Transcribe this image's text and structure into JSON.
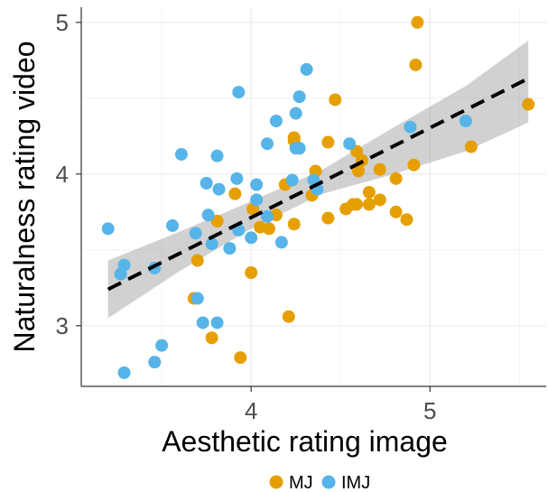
{
  "chart_data": {
    "type": "scatter",
    "xlabel": "Aesthetic rating image",
    "ylabel": "Naturalness rating video",
    "xlim": [
      3.05,
      5.65
    ],
    "ylim": [
      2.6,
      5.1
    ],
    "x_ticks": [
      4,
      5
    ],
    "y_ticks": [
      3,
      4,
      5
    ],
    "grid": true,
    "legend_position": "bottom",
    "series": [
      {
        "name": "MJ",
        "color": "#E69F00",
        "points": [
          [
            4.93,
            5.0
          ],
          [
            4.92,
            4.72
          ],
          [
            5.55,
            4.46
          ],
          [
            4.47,
            4.49
          ],
          [
            4.24,
            4.24
          ],
          [
            4.24,
            4.22
          ],
          [
            4.43,
            4.21
          ],
          [
            4.59,
            4.15
          ],
          [
            5.23,
            4.18
          ],
          [
            4.62,
            4.09
          ],
          [
            4.6,
            4.02
          ],
          [
            4.91,
            4.06
          ],
          [
            4.72,
            4.03
          ],
          [
            4.36,
            4.02
          ],
          [
            4.81,
            3.97
          ],
          [
            4.19,
            3.93
          ],
          [
            3.91,
            3.87
          ],
          [
            4.34,
            3.86
          ],
          [
            4.66,
            3.88
          ],
          [
            4.72,
            3.83
          ],
          [
            4.57,
            3.8
          ],
          [
            4.59,
            3.8
          ],
          [
            4.53,
            3.77
          ],
          [
            4.66,
            3.8
          ],
          [
            4.01,
            3.77
          ],
          [
            4.14,
            3.73
          ],
          [
            4.81,
            3.75
          ],
          [
            4.87,
            3.7
          ],
          [
            4.43,
            3.71
          ],
          [
            4.24,
            3.67
          ],
          [
            3.81,
            3.69
          ],
          [
            4.05,
            3.65
          ],
          [
            4.1,
            3.64
          ],
          [
            3.7,
            3.43
          ],
          [
            4.0,
            3.35
          ],
          [
            3.68,
            3.18
          ],
          [
            4.21,
            3.06
          ],
          [
            3.78,
            2.92
          ],
          [
            3.94,
            2.79
          ]
        ]
      },
      {
        "name": "IMJ",
        "color": "#56B4E9",
        "points": [
          [
            4.31,
            4.69
          ],
          [
            3.93,
            4.54
          ],
          [
            4.27,
            4.51
          ],
          [
            4.25,
            4.4
          ],
          [
            4.14,
            4.35
          ],
          [
            4.89,
            4.31
          ],
          [
            5.2,
            4.35
          ],
          [
            4.09,
            4.2
          ],
          [
            4.55,
            4.2
          ],
          [
            4.27,
            4.17
          ],
          [
            4.25,
            4.17
          ],
          [
            3.61,
            4.13
          ],
          [
            3.81,
            4.12
          ],
          [
            3.92,
            3.97
          ],
          [
            4.23,
            3.96
          ],
          [
            4.35,
            3.96
          ],
          [
            3.75,
            3.94
          ],
          [
            4.03,
            3.93
          ],
          [
            3.82,
            3.9
          ],
          [
            4.37,
            3.9
          ],
          [
            4.03,
            3.83
          ],
          [
            3.76,
            3.73
          ],
          [
            4.09,
            3.72
          ],
          [
            3.56,
            3.66
          ],
          [
            3.69,
            3.61
          ],
          [
            3.93,
            3.63
          ],
          [
            4.0,
            3.58
          ],
          [
            4.17,
            3.55
          ],
          [
            3.78,
            3.54
          ],
          [
            3.88,
            3.51
          ],
          [
            3.2,
            3.64
          ],
          [
            3.27,
            3.34
          ],
          [
            3.29,
            3.4
          ],
          [
            3.46,
            3.38
          ],
          [
            3.7,
            3.18
          ],
          [
            3.73,
            3.02
          ],
          [
            3.81,
            3.02
          ],
          [
            3.5,
            2.87
          ],
          [
            3.46,
            2.76
          ],
          [
            3.29,
            2.69
          ]
        ]
      }
    ],
    "fit_line": {
      "x": [
        3.2,
        5.55
      ],
      "y": [
        3.24,
        4.63
      ]
    },
    "confidence_band": {
      "x": [
        3.2,
        3.6,
        4.0,
        4.4,
        4.8,
        5.2,
        5.55
      ],
      "lower": [
        3.05,
        3.36,
        3.64,
        3.87,
        4.0,
        4.15,
        4.34
      ],
      "upper": [
        3.43,
        3.62,
        3.82,
        4.03,
        4.31,
        4.58,
        4.88
      ]
    }
  }
}
